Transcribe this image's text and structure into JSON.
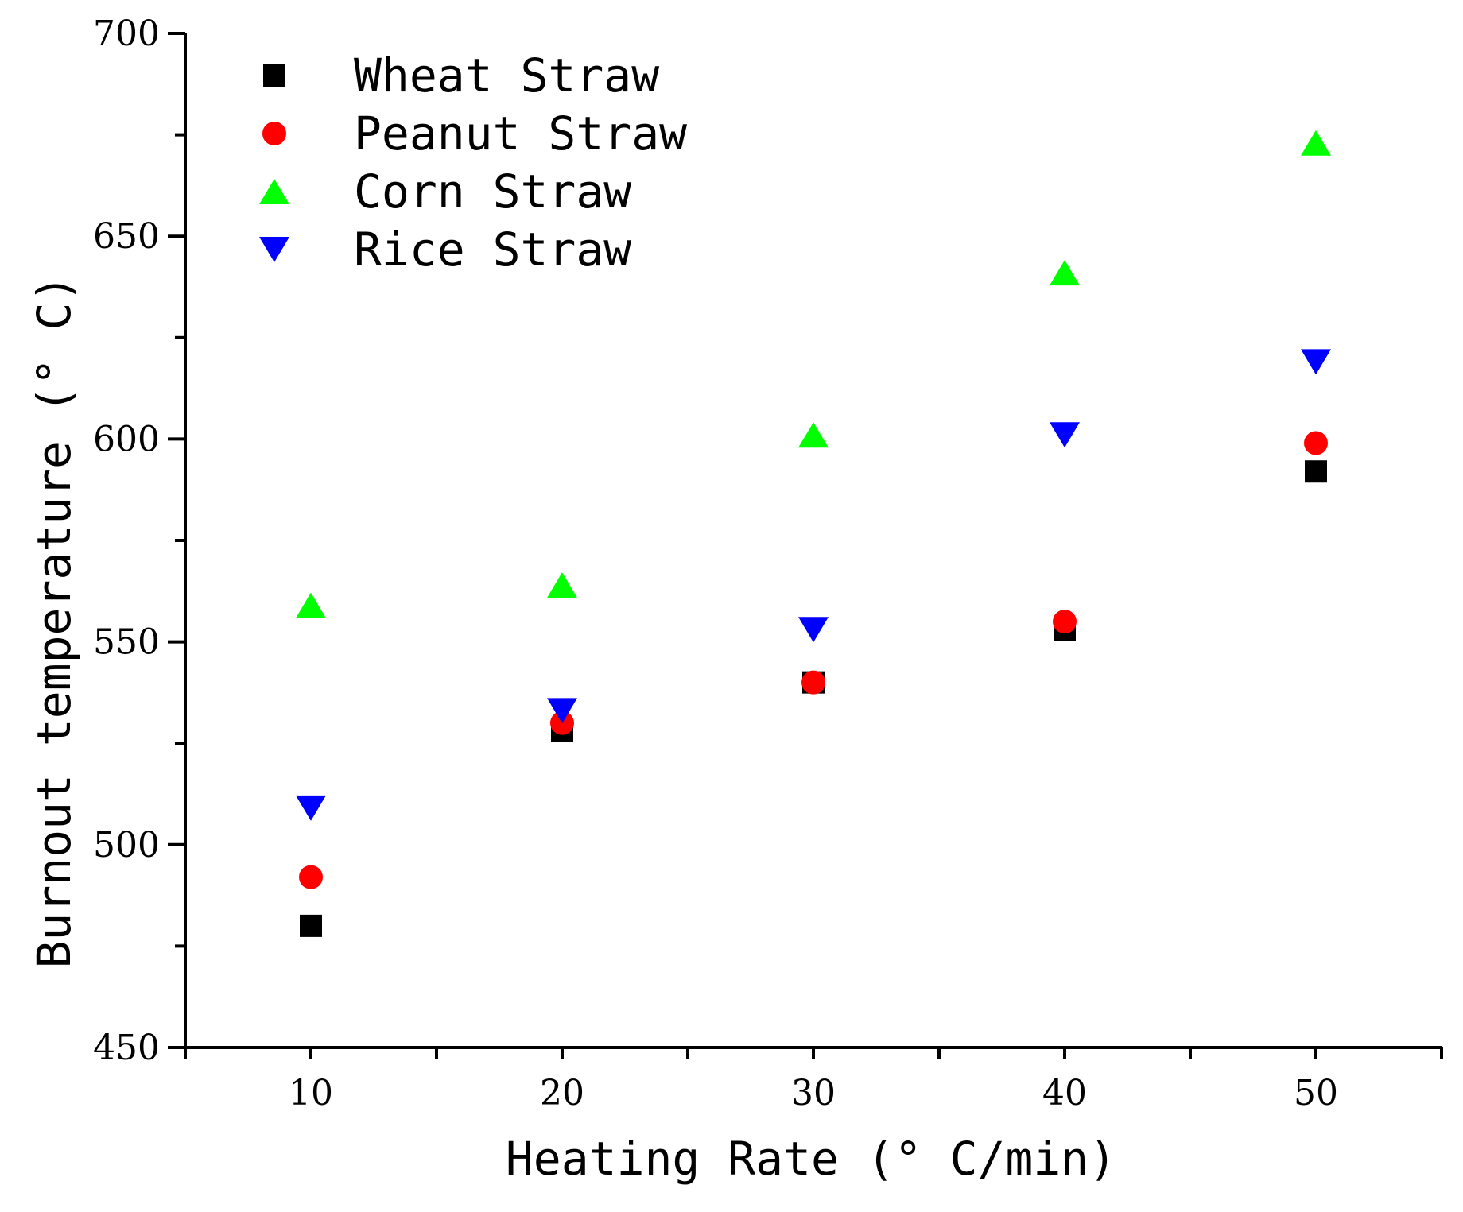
{
  "chart_data": {
    "type": "scatter",
    "title": "",
    "xlabel": "Heating Rate (° C/min)",
    "ylabel": "Burnout temperature (° C)",
    "xlim": [
      5,
      55
    ],
    "ylim": [
      450,
      700
    ],
    "x": [
      10,
      20,
      30,
      40,
      50
    ],
    "x_ticks": [
      "10",
      "20",
      "30",
      "40",
      "50"
    ],
    "y_ticks": [
      "450",
      "500",
      "550",
      "600",
      "650",
      "700"
    ],
    "legend_position": "top-left",
    "grid": false,
    "series": [
      {
        "name": "Wheat Straw",
        "marker": "square",
        "color": "#000000",
        "values": [
          480,
          528,
          540,
          553,
          592
        ]
      },
      {
        "name": "Peanut Straw",
        "marker": "circle",
        "color": "#ff0000",
        "values": [
          492,
          530,
          540,
          555,
          599
        ]
      },
      {
        "name": "Corn Straw",
        "marker": "triangle-up",
        "color": "#00ff00",
        "values": [
          559,
          564,
          601,
          641,
          673
        ]
      },
      {
        "name": "Rice Straw",
        "marker": "triangle-down",
        "color": "#0000ff",
        "values": [
          509,
          533,
          553,
          601,
          619
        ]
      }
    ]
  }
}
